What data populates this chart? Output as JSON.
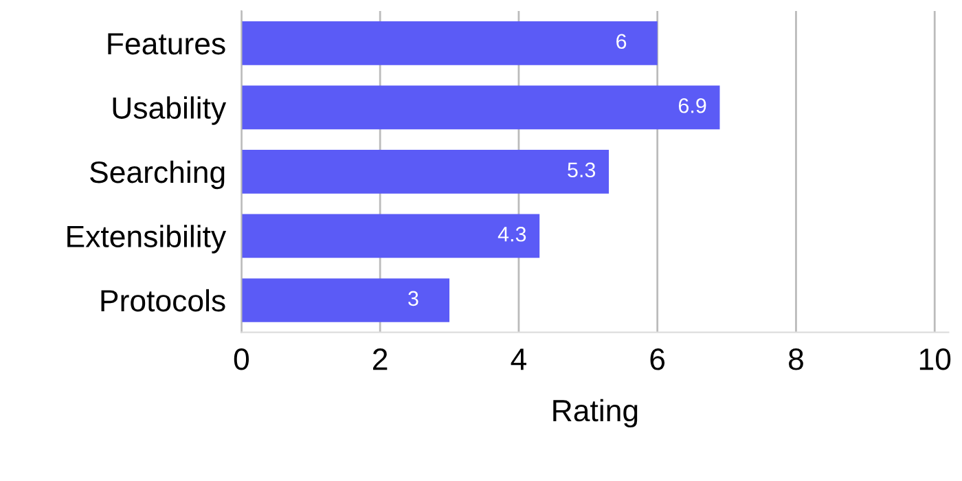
{
  "chart_data": {
    "type": "bar",
    "orientation": "horizontal",
    "categories": [
      "Features",
      "Usability",
      "Searching",
      "Extensibility",
      "Protocols"
    ],
    "values": [
      6,
      6.9,
      5.3,
      4.3,
      3
    ],
    "color": "#5b5bf6",
    "xlabel": "Rating",
    "xlim": [
      0,
      10.2
    ],
    "xticks": [
      0,
      2,
      4,
      6,
      8,
      10
    ],
    "grid": "x",
    "data_labels": true,
    "legend": false
  }
}
